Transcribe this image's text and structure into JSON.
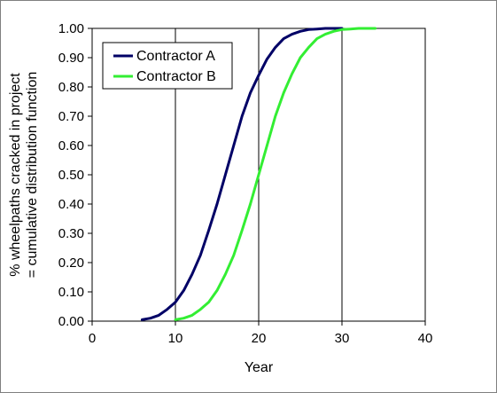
{
  "chart_data": {
    "type": "line",
    "title": "",
    "xlabel": "Year",
    "ylabel_lines": [
      "% wheelpaths cracked in project",
      "= cumulative distribution function"
    ],
    "xlim": [
      0,
      40
    ],
    "ylim": [
      0,
      1
    ],
    "x_ticks": [
      "0",
      "10",
      "20",
      "30",
      "40"
    ],
    "y_ticks": [
      "0.00",
      "0.10",
      "0.20",
      "0.30",
      "0.40",
      "0.50",
      "0.60",
      "0.70",
      "0.80",
      "0.90",
      "1.00"
    ],
    "grid": "vertical",
    "legend_position": "top-left",
    "series": [
      {
        "name": "Contractor A",
        "color": "#000066",
        "points": [
          [
            6,
            0.005
          ],
          [
            7,
            0.01
          ],
          [
            8,
            0.02
          ],
          [
            9,
            0.04
          ],
          [
            10,
            0.065
          ],
          [
            11,
            0.105
          ],
          [
            12,
            0.16
          ],
          [
            13,
            0.225
          ],
          [
            14,
            0.31
          ],
          [
            15,
            0.4
          ],
          [
            16,
            0.5
          ],
          [
            17,
            0.6
          ],
          [
            18,
            0.7
          ],
          [
            19,
            0.78
          ],
          [
            20,
            0.84
          ],
          [
            21,
            0.895
          ],
          [
            22,
            0.935
          ],
          [
            23,
            0.965
          ],
          [
            24,
            0.98
          ],
          [
            25,
            0.99
          ],
          [
            26,
            0.996
          ],
          [
            27,
            0.998
          ],
          [
            28,
            1.0
          ],
          [
            30,
            1.0
          ]
        ]
      },
      {
        "name": "Contractor B",
        "color": "#33ee33",
        "points": [
          [
            10,
            0.005
          ],
          [
            11,
            0.01
          ],
          [
            12,
            0.02
          ],
          [
            13,
            0.04
          ],
          [
            14,
            0.065
          ],
          [
            15,
            0.105
          ],
          [
            16,
            0.16
          ],
          [
            17,
            0.225
          ],
          [
            18,
            0.31
          ],
          [
            19,
            0.4
          ],
          [
            20,
            0.5
          ],
          [
            21,
            0.6
          ],
          [
            22,
            0.7
          ],
          [
            23,
            0.78
          ],
          [
            24,
            0.845
          ],
          [
            25,
            0.9
          ],
          [
            26,
            0.935
          ],
          [
            27,
            0.965
          ],
          [
            28,
            0.98
          ],
          [
            29,
            0.99
          ],
          [
            30,
            0.996
          ],
          [
            31,
            0.998
          ],
          [
            32,
            1.0
          ],
          [
            34,
            1.0
          ]
        ]
      }
    ]
  }
}
